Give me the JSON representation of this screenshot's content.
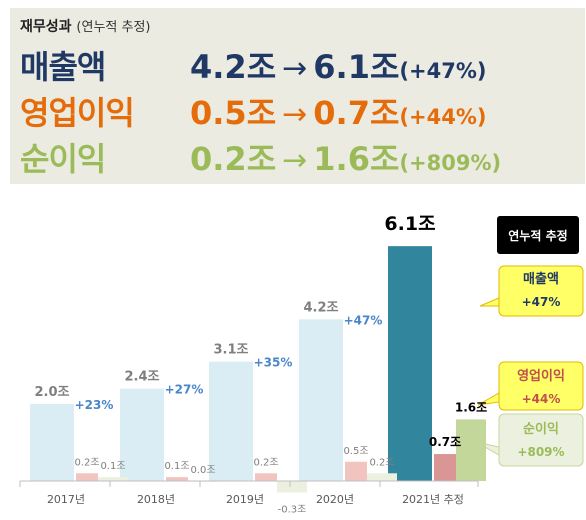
{
  "summary": {
    "title": "재무성과",
    "subtitle": "(연누적 추정)",
    "rows": [
      {
        "label": "매출액",
        "from": "4.2조",
        "to": "6.1조",
        "change": "(+47%)"
      },
      {
        "label": "영업이익",
        "from": "0.5조",
        "to": "0.7조",
        "change": "(+44%)"
      },
      {
        "label": "순이익",
        "from": "0.2조",
        "to": "1.6조",
        "change": "(+809%)"
      }
    ],
    "arrow": "→"
  },
  "badge": "연누적 추정",
  "callouts": [
    {
      "label": "매출액",
      "value": "+47%"
    },
    {
      "label": "영업이익",
      "value": "+44%"
    },
    {
      "label": "순이익",
      "value": "+809%"
    }
  ],
  "colors": {
    "revenue": "#daedf4",
    "revenue_hl": "#31859c",
    "op": "#f2c4c0",
    "op_hl": "#d99694",
    "net": "#ebf1de",
    "net_hl": "#c4d79b",
    "navy": "#1f3864",
    "orange": "#e46c0a",
    "green": "#9bbb59",
    "growth": "#4a86c8"
  },
  "chart_data": {
    "type": "bar",
    "categories": [
      "2017년",
      "2018년",
      "2019년",
      "2020년",
      "2021년 추정"
    ],
    "series": [
      {
        "values": [
          2.0,
          2.4,
          3.1,
          4.2,
          6.1
        ]
      },
      {
        "values": [
          0.2,
          0.1,
          0.2,
          0.5,
          0.7
        ]
      },
      {
        "values": [
          0.1,
          0.0,
          -0.3,
          0.2,
          1.6
        ]
      }
    ],
    "value_labels": [
      [
        "2.0조",
        "2.4조",
        "3.1조",
        "4.2조",
        "6.1조"
      ],
      [
        "0.2조",
        "0.1조",
        "0.2조",
        "0.5조",
        "0.7조"
      ],
      [
        "0.1조",
        "0.0조",
        "-0.3조",
        "0.2조",
        "1.6조"
      ]
    ],
    "growth_labels": [
      "+23%",
      "+27%",
      "+35%",
      "+47%"
    ],
    "highlight_index": 4
  }
}
